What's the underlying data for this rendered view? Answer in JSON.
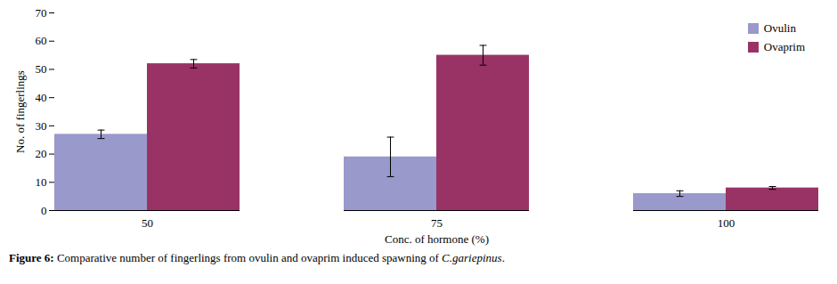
{
  "chart_data": {
    "type": "bar",
    "categories": [
      "50",
      "75",
      "100"
    ],
    "series": [
      {
        "name": "Ovulin",
        "color": "#9999CC",
        "values": [
          27,
          19,
          6
        ],
        "errors": [
          1.5,
          7,
          1
        ]
      },
      {
        "name": "Ovaprim",
        "color": "#993366",
        "values": [
          52,
          55,
          8
        ],
        "errors": [
          1.5,
          3.5,
          0.5
        ]
      }
    ],
    "xlabel": "Conc. of hormone (%)",
    "ylabel": "No. of fingerlings",
    "ylim": [
      0,
      70
    ],
    "yticks": [
      0,
      10,
      20,
      30,
      40,
      50,
      60,
      70
    ],
    "grid": false,
    "legend": "upper right",
    "caption": [
      "Figure 6:",
      " Comparative number of fingerlings from ovulin and ovaprim induced spawning of ",
      "C.gariepinus",
      "."
    ]
  }
}
